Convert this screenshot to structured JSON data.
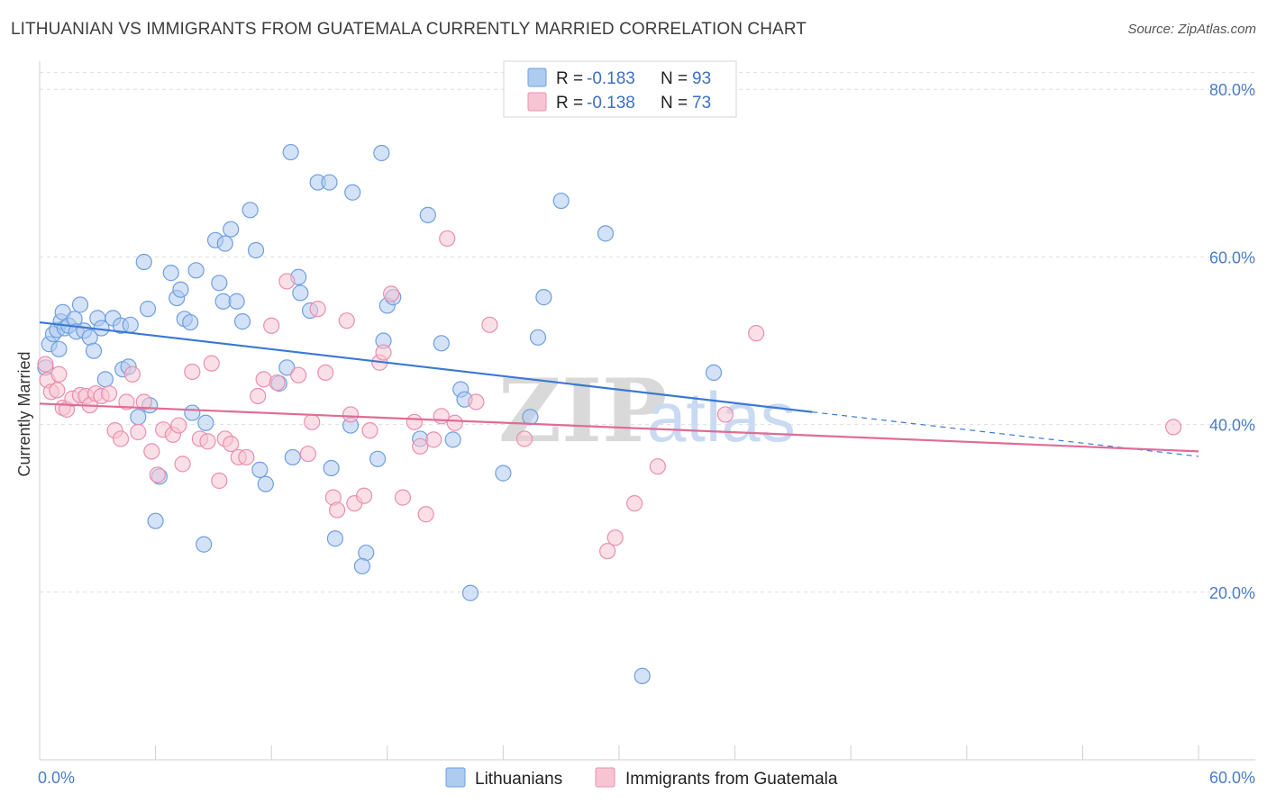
{
  "header": {
    "title": "LITHUANIAN VS IMMIGRANTS FROM GUATEMALA CURRENTLY MARRIED CORRELATION CHART",
    "source": "Source: ZipAtlas.com"
  },
  "watermark": {
    "zip": "ZIP",
    "atlas": "atlas"
  },
  "legend": {
    "rows": [
      {
        "r_label": "R =",
        "r_value": "-0.183",
        "n_label": "N =",
        "n_value": "93",
        "color": "#aecbf0",
        "stroke": "#6f9fe0"
      },
      {
        "r_label": "R =",
        "r_value": "-0.138",
        "n_label": "N =",
        "n_value": "73",
        "color": "#f8c4d4",
        "stroke": "#ea8fae"
      }
    ]
  },
  "chart_data": {
    "type": "scatter",
    "title": "LITHUANIAN VS IMMIGRANTS FROM GUATEMALA CURRENTLY MARRIED CORRELATION CHART",
    "xlabel": "",
    "ylabel": "Currently Married",
    "xlim": [
      0,
      60
    ],
    "ylim": [
      0,
      84
    ],
    "x_tick_labels": [
      "0.0%",
      "60.0%"
    ],
    "y_ticks": [
      20,
      40,
      60,
      80
    ],
    "y_tick_labels": [
      "20.0%",
      "40.0%",
      "60.0%",
      "80.0%"
    ],
    "grid": true,
    "legend_position": "top-center",
    "series": [
      {
        "name": "Lithuanians",
        "color": "#6f9fe0",
        "fill": "#aecbf0",
        "trend": {
          "x": [
            0,
            40
          ],
          "y": [
            52.2,
            41.5
          ],
          "dashed_to": [
            60,
            36.2
          ],
          "color": "#3a78d4"
        },
        "points": [
          [
            0.3,
            46.8
          ],
          [
            0.5,
            49.6
          ],
          [
            0.7,
            50.8
          ],
          [
            0.9,
            51.3
          ],
          [
            1.1,
            52.3
          ],
          [
            1.2,
            53.4
          ],
          [
            1.3,
            51.5
          ],
          [
            1.5,
            51.8
          ],
          [
            1.8,
            52.6
          ],
          [
            1.9,
            51.1
          ],
          [
            2.1,
            54.3
          ],
          [
            2.3,
            51.2
          ],
          [
            2.6,
            50.4
          ],
          [
            2.8,
            48.8
          ],
          [
            3.0,
            52.7
          ],
          [
            3.2,
            51.5
          ],
          [
            3.8,
            52.7
          ],
          [
            4.2,
            51.8
          ],
          [
            4.7,
            51.9
          ],
          [
            3.4,
            45.4
          ],
          [
            4.3,
            46.6
          ],
          [
            4.6,
            46.9
          ],
          [
            5.1,
            40.9
          ],
          [
            5.4,
            59.4
          ],
          [
            5.6,
            53.8
          ],
          [
            5.7,
            42.3
          ],
          [
            6.2,
            33.8
          ],
          [
            6.8,
            58.1
          ],
          [
            7.1,
            55.1
          ],
          [
            7.3,
            56.1
          ],
          [
            7.5,
            52.6
          ],
          [
            7.8,
            52.2
          ],
          [
            8.1,
            58.4
          ],
          [
            7.9,
            41.4
          ],
          [
            8.6,
            40.2
          ],
          [
            9.1,
            62.0
          ],
          [
            9.3,
            56.9
          ],
          [
            9.5,
            54.7
          ],
          [
            9.6,
            61.6
          ],
          [
            9.9,
            63.3
          ],
          [
            10.2,
            54.7
          ],
          [
            10.5,
            52.3
          ],
          [
            10.9,
            65.6
          ],
          [
            11.2,
            60.8
          ],
          [
            11.4,
            34.6
          ],
          [
            11.7,
            32.9
          ],
          [
            12.4,
            44.9
          ],
          [
            12.8,
            46.8
          ],
          [
            13.1,
            36.1
          ],
          [
            13.0,
            72.5
          ],
          [
            13.4,
            57.6
          ],
          [
            13.5,
            55.7
          ],
          [
            14.0,
            53.6
          ],
          [
            14.4,
            68.9
          ],
          [
            15.0,
            68.9
          ],
          [
            15.1,
            34.8
          ],
          [
            15.3,
            26.4
          ],
          [
            16.2,
            67.7
          ],
          [
            16.1,
            39.9
          ],
          [
            16.9,
            24.7
          ],
          [
            16.7,
            23.1
          ],
          [
            17.5,
            35.9
          ],
          [
            17.7,
            72.4
          ],
          [
            17.8,
            50.0
          ],
          [
            18.0,
            54.2
          ],
          [
            18.3,
            55.2
          ],
          [
            19.7,
            38.3
          ],
          [
            20.1,
            65.0
          ],
          [
            20.8,
            49.7
          ],
          [
            21.4,
            38.2
          ],
          [
            21.8,
            44.2
          ],
          [
            22.0,
            43.0
          ],
          [
            22.3,
            19.9
          ],
          [
            24.0,
            34.2
          ],
          [
            25.4,
            40.9
          ],
          [
            25.8,
            50.4
          ],
          [
            26.1,
            55.2
          ],
          [
            27.0,
            66.7
          ],
          [
            29.3,
            62.8
          ],
          [
            31.2,
            10.0
          ],
          [
            34.9,
            46.2
          ],
          [
            6.0,
            28.5
          ],
          [
            8.5,
            25.7
          ],
          [
            1.0,
            49.0
          ]
        ]
      },
      {
        "name": "Immigrants from Guatemala",
        "color": "#ea8fae",
        "fill": "#f8c4d4",
        "trend": {
          "x": [
            0,
            60
          ],
          "y": [
            42.5,
            36.8
          ],
          "color": "#e06c96"
        },
        "points": [
          [
            0.3,
            47.2
          ],
          [
            0.4,
            45.3
          ],
          [
            0.6,
            43.9
          ],
          [
            0.9,
            44.1
          ],
          [
            1.2,
            42.0
          ],
          [
            1.4,
            41.8
          ],
          [
            1.7,
            43.1
          ],
          [
            2.1,
            43.5
          ],
          [
            2.4,
            43.4
          ],
          [
            2.6,
            42.3
          ],
          [
            2.9,
            43.7
          ],
          [
            3.2,
            43.4
          ],
          [
            3.6,
            43.7
          ],
          [
            3.9,
            39.3
          ],
          [
            4.2,
            38.3
          ],
          [
            4.5,
            42.7
          ],
          [
            4.8,
            46.0
          ],
          [
            5.1,
            39.1
          ],
          [
            5.4,
            42.7
          ],
          [
            5.8,
            36.8
          ],
          [
            6.1,
            34.0
          ],
          [
            6.4,
            39.4
          ],
          [
            6.9,
            38.8
          ],
          [
            7.2,
            39.9
          ],
          [
            7.4,
            35.3
          ],
          [
            7.9,
            46.3
          ],
          [
            8.3,
            38.3
          ],
          [
            8.7,
            38.0
          ],
          [
            8.9,
            47.3
          ],
          [
            9.3,
            33.3
          ],
          [
            9.6,
            38.3
          ],
          [
            9.9,
            37.7
          ],
          [
            10.3,
            36.1
          ],
          [
            10.7,
            36.1
          ],
          [
            11.3,
            43.4
          ],
          [
            11.6,
            45.4
          ],
          [
            12.0,
            51.8
          ],
          [
            12.3,
            45.0
          ],
          [
            12.8,
            57.1
          ],
          [
            13.4,
            45.9
          ],
          [
            13.9,
            36.5
          ],
          [
            14.1,
            40.3
          ],
          [
            14.4,
            53.8
          ],
          [
            14.8,
            46.2
          ],
          [
            15.2,
            31.3
          ],
          [
            15.4,
            29.8
          ],
          [
            15.9,
            52.4
          ],
          [
            16.1,
            41.2
          ],
          [
            16.3,
            30.6
          ],
          [
            16.8,
            31.5
          ],
          [
            17.1,
            39.3
          ],
          [
            17.6,
            47.4
          ],
          [
            17.8,
            48.6
          ],
          [
            18.2,
            55.6
          ],
          [
            18.8,
            31.3
          ],
          [
            19.4,
            40.3
          ],
          [
            19.7,
            37.4
          ],
          [
            20.0,
            29.3
          ],
          [
            20.4,
            38.2
          ],
          [
            20.8,
            41.0
          ],
          [
            21.1,
            62.2
          ],
          [
            21.5,
            40.2
          ],
          [
            22.6,
            42.7
          ],
          [
            23.3,
            51.9
          ],
          [
            25.1,
            38.3
          ],
          [
            29.4,
            24.9
          ],
          [
            29.8,
            26.5
          ],
          [
            30.8,
            30.6
          ],
          [
            32.0,
            35.0
          ],
          [
            35.5,
            41.2
          ],
          [
            37.1,
            50.9
          ],
          [
            58.7,
            39.7
          ],
          [
            1.0,
            46.0
          ]
        ]
      }
    ]
  },
  "axes": {
    "ylabel": "Currently Married",
    "x_min_label": "0.0%",
    "x_max_label": "60.0%"
  }
}
